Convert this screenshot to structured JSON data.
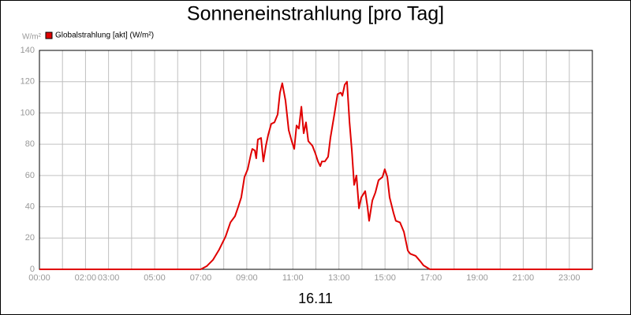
{
  "chart_data": {
    "type": "line",
    "title": "Sonneneinstrahlung [pro Tag]",
    "y_unit": "W/m²",
    "x_label": "16.11",
    "legend": "top-left",
    "grid": true,
    "xlim": [
      0,
      24
    ],
    "ylim": [
      0,
      140
    ],
    "yticks": [
      0,
      20,
      40,
      60,
      80,
      100,
      120,
      140
    ],
    "xticks": [
      {
        "value": 0,
        "label": "00:00"
      },
      {
        "value": 1,
        "label": null
      },
      {
        "value": 2,
        "label": "02:00"
      },
      {
        "value": 3,
        "label": "03:00"
      },
      {
        "value": 4,
        "label": null
      },
      {
        "value": 5,
        "label": "05:00"
      },
      {
        "value": 6,
        "label": null
      },
      {
        "value": 7,
        "label": "07:00"
      },
      {
        "value": 8,
        "label": null
      },
      {
        "value": 9,
        "label": "09:00"
      },
      {
        "value": 10,
        "label": null
      },
      {
        "value": 11,
        "label": "11:00"
      },
      {
        "value": 12,
        "label": null
      },
      {
        "value": 13,
        "label": "13:00"
      },
      {
        "value": 14,
        "label": null
      },
      {
        "value": 15,
        "label": "15:00"
      },
      {
        "value": 16,
        "label": null
      },
      {
        "value": 17,
        "label": "17:00"
      },
      {
        "value": 18,
        "label": null
      },
      {
        "value": 19,
        "label": "19:00"
      },
      {
        "value": 20,
        "label": null
      },
      {
        "value": 21,
        "label": "21:00"
      },
      {
        "value": 22,
        "label": null
      },
      {
        "value": 23,
        "label": "23:00"
      }
    ],
    "x": [
      0,
      7.0,
      7.26,
      7.53,
      7.8,
      8.08,
      8.29,
      8.49,
      8.63,
      8.76,
      8.9,
      9.04,
      9.17,
      9.24,
      9.35,
      9.41,
      9.48,
      9.62,
      9.72,
      9.83,
      9.93,
      10.06,
      10.2,
      10.34,
      10.44,
      10.54,
      10.68,
      10.82,
      10.95,
      11.06,
      11.16,
      11.26,
      11.37,
      11.47,
      11.57,
      11.67,
      11.85,
      11.98,
      12.09,
      12.19,
      12.26,
      12.39,
      12.53,
      12.63,
      12.8,
      12.94,
      13.08,
      13.15,
      13.25,
      13.35,
      13.46,
      13.56,
      13.66,
      13.76,
      13.87,
      13.97,
      14.14,
      14.24,
      14.31,
      14.45,
      14.58,
      14.72,
      14.89,
      14.99,
      15.1,
      15.2,
      15.37,
      15.47,
      15.65,
      15.82,
      15.99,
      16.09,
      16.33,
      16.54,
      16.67,
      16.95,
      24
    ],
    "series": [
      {
        "name": "Globalstrahlung [akt] (W/m²)",
        "color": "#e00000",
        "values": [
          0,
          0,
          2,
          6,
          12.6,
          21,
          30,
          34,
          40,
          46,
          59,
          64,
          73,
          77,
          76,
          71,
          83,
          84,
          69,
          79,
          86,
          93,
          94,
          99,
          113,
          119,
          108,
          89,
          82,
          77,
          92,
          90,
          104,
          87,
          94,
          82,
          79,
          74,
          69,
          66,
          69,
          69,
          72,
          84,
          99,
          112,
          113,
          111,
          118,
          120,
          94,
          76,
          54,
          60,
          39,
          46,
          50,
          40,
          31,
          44,
          49,
          57,
          59,
          64,
          59,
          46,
          36,
          31,
          30,
          24,
          12,
          10,
          8.6,
          5,
          2.5,
          0,
          0
        ]
      }
    ]
  }
}
